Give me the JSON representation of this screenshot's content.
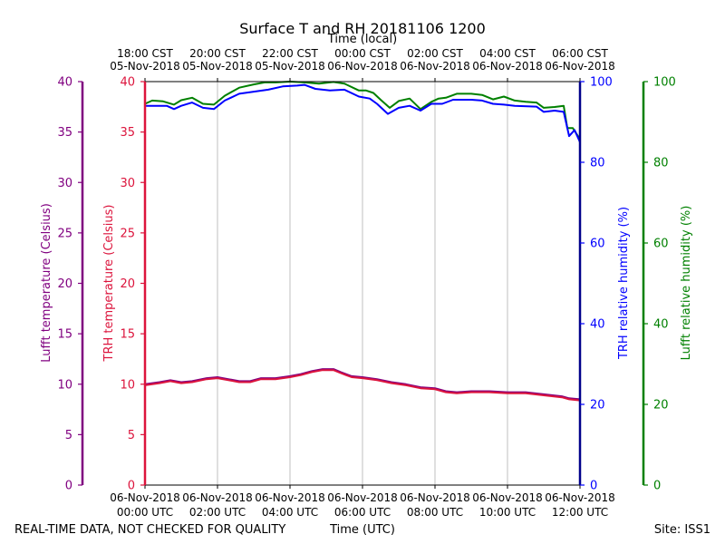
{
  "chart_data": {
    "type": "line",
    "title": "Surface T and RH 20181106 1200",
    "top_axis_label": "Time (local)",
    "xlabel": "Time (UTC)",
    "footer_left": "REAL-TIME DATA, NOT CHECKED FOR QUALITY",
    "footer_right": "Site: ISS1",
    "x_range_hours": [
      0,
      12
    ],
    "bottom_ticks": [
      {
        "h": 0,
        "line1": "06-Nov-2018",
        "line2": "00:00 UTC"
      },
      {
        "h": 2,
        "line1": "06-Nov-2018",
        "line2": "02:00 UTC"
      },
      {
        "h": 4,
        "line1": "06-Nov-2018",
        "line2": "04:00 UTC"
      },
      {
        "h": 6,
        "line1": "06-Nov-2018",
        "line2": "06:00 UTC"
      },
      {
        "h": 8,
        "line1": "06-Nov-2018",
        "line2": "08:00 UTC"
      },
      {
        "h": 10,
        "line1": "06-Nov-2018",
        "line2": "10:00 UTC"
      },
      {
        "h": 12,
        "line1": "06-Nov-2018",
        "line2": "12:00 UTC"
      }
    ],
    "top_ticks": [
      {
        "h": 0,
        "line1": "18:00 CST",
        "line2": "05-Nov-2018"
      },
      {
        "h": 2,
        "line1": "20:00 CST",
        "line2": "05-Nov-2018"
      },
      {
        "h": 4,
        "line1": "22:00 CST",
        "line2": "05-Nov-2018"
      },
      {
        "h": 6,
        "line1": "00:00 CST",
        "line2": "06-Nov-2018"
      },
      {
        "h": 8,
        "line1": "02:00 CST",
        "line2": "06-Nov-2018"
      },
      {
        "h": 10,
        "line1": "04:00 CST",
        "line2": "06-Nov-2018"
      },
      {
        "h": 12,
        "line1": "06:00 CST",
        "line2": "06-Nov-2018"
      }
    ],
    "axes": {
      "lufft_temp": {
        "label": "Lufft temperature (Celsius)",
        "range": [
          0,
          40
        ],
        "ticks": [
          0,
          5,
          10,
          15,
          20,
          25,
          30,
          35,
          40
        ],
        "color": "#800080"
      },
      "trh_temp": {
        "label": "TRH temperature (Celsius)",
        "range": [
          0,
          40
        ],
        "ticks": [
          0,
          5,
          10,
          15,
          20,
          25,
          30,
          35,
          40
        ],
        "color": "#dc143c"
      },
      "trh_rh": {
        "label": "TRH relative humidity (%)",
        "range": [
          0,
          100
        ],
        "ticks": [
          0,
          20,
          40,
          60,
          80,
          100
        ],
        "color": "#0000ff"
      },
      "lufft_rh": {
        "label": "Lufft relative humidity (%)",
        "range": [
          0,
          100
        ],
        "ticks": [
          0,
          20,
          40,
          60,
          80,
          100
        ],
        "color": "#008000"
      }
    },
    "series": [
      {
        "name": "Lufft relative humidity",
        "axis": "lufft_rh",
        "color": "#008000",
        "points": [
          [
            0,
            94.5
          ],
          [
            0.2,
            95.3
          ],
          [
            0.5,
            95.1
          ],
          [
            0.8,
            94.3
          ],
          [
            1.0,
            95.4
          ],
          [
            1.3,
            96.0
          ],
          [
            1.6,
            94.5
          ],
          [
            1.9,
            94.3
          ],
          [
            2.2,
            96.5
          ],
          [
            2.6,
            98.5
          ],
          [
            3.0,
            99.3
          ],
          [
            3.3,
            99.8
          ],
          [
            3.6,
            99.8
          ],
          [
            4.0,
            100.0
          ],
          [
            4.4,
            99.8
          ],
          [
            4.8,
            99.5
          ],
          [
            5.2,
            99.9
          ],
          [
            5.5,
            99.5
          ],
          [
            5.9,
            97.8
          ],
          [
            6.1,
            97.8
          ],
          [
            6.3,
            97.2
          ],
          [
            6.5,
            95.5
          ],
          [
            6.75,
            93.5
          ],
          [
            7.0,
            95.2
          ],
          [
            7.3,
            95.8
          ],
          [
            7.6,
            93.2
          ],
          [
            7.9,
            95.0
          ],
          [
            8.1,
            95.8
          ],
          [
            8.3,
            96.0
          ],
          [
            8.6,
            97.0
          ],
          [
            9.0,
            97.0
          ],
          [
            9.3,
            96.7
          ],
          [
            9.6,
            95.6
          ],
          [
            9.9,
            96.3
          ],
          [
            10.2,
            95.3
          ],
          [
            10.5,
            95.0
          ],
          [
            10.8,
            94.8
          ],
          [
            11.0,
            93.5
          ],
          [
            11.3,
            93.7
          ],
          [
            11.55,
            94.0
          ],
          [
            11.65,
            88.5
          ],
          [
            11.8,
            88.5
          ],
          [
            12.0,
            85.7
          ]
        ]
      },
      {
        "name": "TRH relative humidity",
        "axis": "trh_rh",
        "color": "#0000ff",
        "points": [
          [
            0,
            94.0
          ],
          [
            0.3,
            94.0
          ],
          [
            0.6,
            94.0
          ],
          [
            0.8,
            93.2
          ],
          [
            1.0,
            94.0
          ],
          [
            1.3,
            94.8
          ],
          [
            1.6,
            93.5
          ],
          [
            1.9,
            93.2
          ],
          [
            2.2,
            95.3
          ],
          [
            2.6,
            97.0
          ],
          [
            3.0,
            97.5
          ],
          [
            3.4,
            98.0
          ],
          [
            3.8,
            98.8
          ],
          [
            4.2,
            99.0
          ],
          [
            4.4,
            99.2
          ],
          [
            4.7,
            98.2
          ],
          [
            5.1,
            97.8
          ],
          [
            5.5,
            98.0
          ],
          [
            5.9,
            96.3
          ],
          [
            6.2,
            95.8
          ],
          [
            6.4,
            94.5
          ],
          [
            6.7,
            92.0
          ],
          [
            7.0,
            93.5
          ],
          [
            7.3,
            94.0
          ],
          [
            7.6,
            92.8
          ],
          [
            7.9,
            94.5
          ],
          [
            8.2,
            94.5
          ],
          [
            8.5,
            95.5
          ],
          [
            9.0,
            95.5
          ],
          [
            9.3,
            95.3
          ],
          [
            9.6,
            94.5
          ],
          [
            9.9,
            94.3
          ],
          [
            10.2,
            94.0
          ],
          [
            10.8,
            93.8
          ],
          [
            11.0,
            92.5
          ],
          [
            11.3,
            92.8
          ],
          [
            11.55,
            92.5
          ],
          [
            11.7,
            86.5
          ],
          [
            11.85,
            88.0
          ],
          [
            12.0,
            85.0
          ]
        ]
      },
      {
        "name": "Lufft temperature",
        "axis": "lufft_temp",
        "color": "#800080",
        "points": [
          [
            0,
            10.0
          ],
          [
            0.4,
            10.2
          ],
          [
            0.7,
            10.4
          ],
          [
            1.0,
            10.2
          ],
          [
            1.3,
            10.3
          ],
          [
            1.7,
            10.6
          ],
          [
            2.0,
            10.7
          ],
          [
            2.3,
            10.5
          ],
          [
            2.6,
            10.3
          ],
          [
            2.9,
            10.3
          ],
          [
            3.2,
            10.6
          ],
          [
            3.6,
            10.6
          ],
          [
            4.0,
            10.8
          ],
          [
            4.3,
            11.0
          ],
          [
            4.6,
            11.3
          ],
          [
            4.9,
            11.5
          ],
          [
            5.2,
            11.5
          ],
          [
            5.4,
            11.2
          ],
          [
            5.7,
            10.8
          ],
          [
            6.0,
            10.7
          ],
          [
            6.4,
            10.5
          ],
          [
            6.8,
            10.2
          ],
          [
            7.2,
            10.0
          ],
          [
            7.6,
            9.7
          ],
          [
            8.0,
            9.6
          ],
          [
            8.3,
            9.3
          ],
          [
            8.6,
            9.2
          ],
          [
            9.0,
            9.3
          ],
          [
            9.5,
            9.3
          ],
          [
            10.0,
            9.2
          ],
          [
            10.5,
            9.2
          ],
          [
            11.0,
            9.0
          ],
          [
            11.5,
            8.8
          ],
          [
            11.7,
            8.6
          ],
          [
            12.0,
            8.5
          ]
        ]
      },
      {
        "name": "TRH temperature",
        "axis": "trh_temp",
        "color": "#dc143c",
        "points": [
          [
            0,
            9.9
          ],
          [
            0.4,
            10.1
          ],
          [
            0.7,
            10.3
          ],
          [
            1.0,
            10.1
          ],
          [
            1.3,
            10.2
          ],
          [
            1.7,
            10.5
          ],
          [
            2.0,
            10.6
          ],
          [
            2.3,
            10.4
          ],
          [
            2.6,
            10.2
          ],
          [
            2.9,
            10.2
          ],
          [
            3.2,
            10.5
          ],
          [
            3.6,
            10.5
          ],
          [
            4.0,
            10.7
          ],
          [
            4.3,
            10.9
          ],
          [
            4.6,
            11.2
          ],
          [
            4.9,
            11.4
          ],
          [
            5.2,
            11.4
          ],
          [
            5.4,
            11.1
          ],
          [
            5.7,
            10.7
          ],
          [
            6.0,
            10.6
          ],
          [
            6.4,
            10.4
          ],
          [
            6.8,
            10.1
          ],
          [
            7.2,
            9.9
          ],
          [
            7.6,
            9.6
          ],
          [
            8.0,
            9.5
          ],
          [
            8.3,
            9.2
          ],
          [
            8.6,
            9.1
          ],
          [
            9.0,
            9.2
          ],
          [
            9.5,
            9.2
          ],
          [
            10.0,
            9.1
          ],
          [
            10.5,
            9.1
          ],
          [
            11.0,
            8.9
          ],
          [
            11.5,
            8.7
          ],
          [
            11.7,
            8.5
          ],
          [
            12.0,
            8.4
          ]
        ]
      }
    ]
  }
}
